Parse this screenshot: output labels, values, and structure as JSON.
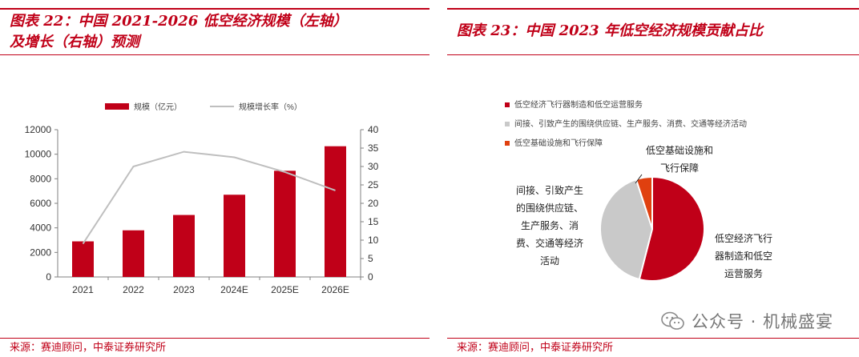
{
  "left_panel": {
    "title_line1": "图表 22：中国 2021-2026 低空经济规模（左轴）",
    "title_line2": "及增长（右轴）预测",
    "source": "来源：赛迪顾问，中泰证券研究所"
  },
  "right_panel": {
    "title": "图表 23：中国 2023 年低空经济规模贡献占比",
    "source": "来源：赛迪顾问，中泰证券研究所",
    "watermark": "公众号 · 机械盛宴"
  },
  "chart_data": [
    {
      "type": "bar",
      "categories": [
        "2021",
        "2022",
        "2023",
        "2024E",
        "2025E",
        "2026E"
      ],
      "series": [
        {
          "name": "规模（亿元）",
          "type": "bar",
          "axis": "left",
          "values": [
            2900,
            3800,
            5050,
            6700,
            8650,
            10650
          ]
        },
        {
          "name": "规模增长率（%）",
          "type": "line",
          "axis": "right",
          "values": [
            9,
            30,
            34,
            32.5,
            28.5,
            23.5
          ]
        }
      ],
      "yticks_left": [
        "0",
        "2000",
        "4000",
        "6000",
        "8000",
        "10000",
        "12000"
      ],
      "yticks_right": [
        "0",
        "5",
        "10",
        "15",
        "20",
        "25",
        "30",
        "35",
        "40"
      ],
      "ylim_left": [
        0,
        12000
      ],
      "ylim_right": [
        0,
        40
      ],
      "legend_position": "top",
      "grid": false,
      "colors": {
        "bar": "#c00018",
        "line": "#bfbfbf"
      }
    },
    {
      "type": "pie",
      "slices": [
        {
          "name": "低空经济飞行器制造和低空运营服务",
          "label_lines": [
            "低空经济飞行",
            "器制造和低空",
            "运营服务"
          ],
          "value": 54,
          "color": "#c00018"
        },
        {
          "name": "间接、引致产生的围绕供应链、生产服务、消费、交通等经济活动",
          "label_lines": [
            "间接、引致产生",
            "的围绕供应链、",
            "生产服务、消",
            "费、交通等经济",
            "活动"
          ],
          "value": 41,
          "color": "#c9c9c9"
        },
        {
          "name": "低空基础设施和飞行保障",
          "label_lines": [
            "低空基础设施和",
            "飞行保障"
          ],
          "value": 5,
          "color": "#e0400f"
        }
      ],
      "legend_position": "top-left"
    }
  ]
}
